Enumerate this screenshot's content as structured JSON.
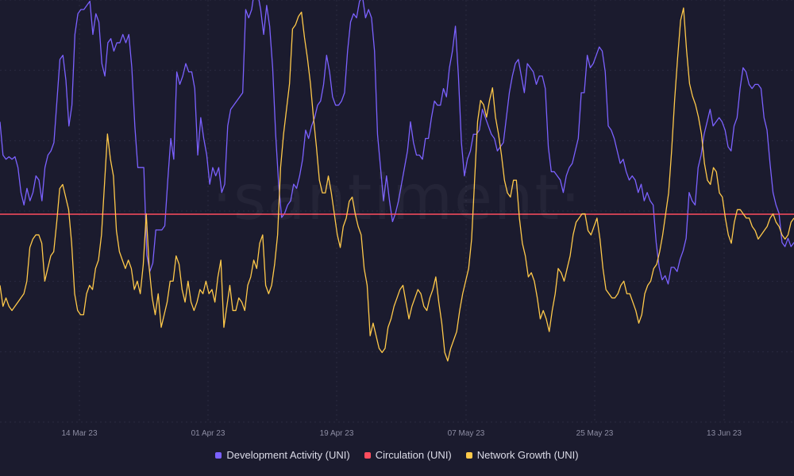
{
  "watermark": "·santiment·",
  "chart_data": {
    "type": "line",
    "x_ticks": [
      "14 Mar 23",
      "01 Apr 23",
      "19 Apr 23",
      "07 May 23",
      "25 May 23",
      "13 Jun 23"
    ],
    "grid": {
      "vertical": true,
      "horizontal": true
    },
    "legend_position": "bottom",
    "colors": {
      "background": "#1b1b2e",
      "grid": "#2b2b40",
      "development_activity": "#7b61ff",
      "circulation": "#ff4d5e",
      "network_growth": "#ffc94a"
    },
    "series": [
      {
        "name": "Development Activity (UNI)",
        "key": "development_activity",
        "values": [
          195,
          155,
          150,
          153,
          150,
          153,
          140,
          110,
          95,
          115,
          100,
          110,
          130,
          125,
          100,
          140,
          155,
          160,
          170,
          220,
          270,
          275,
          245,
          190,
          215,
          300,
          325,
          330,
          330,
          335,
          340,
          300,
          325,
          315,
          265,
          250,
          290,
          295,
          280,
          290,
          290,
          300,
          290,
          300,
          260,
          190,
          140,
          140,
          140,
          35,
          15,
          25,
          65,
          65,
          65,
          70,
          125,
          175,
          150,
          255,
          240,
          250,
          265,
          255,
          255,
          235,
          155,
          200,
          175,
          155,
          120,
          140,
          130,
          140,
          110,
          120,
          190,
          210,
          215,
          220,
          225,
          230,
          330,
          320,
          330,
          355,
          350,
          330,
          300,
          335,
          310,
          260,
          180,
          120,
          80,
          85,
          95,
          100,
          120,
          115,
          130,
          150,
          185,
          175,
          190,
          200,
          215,
          220,
          240,
          275,
          255,
          225,
          215,
          215,
          220,
          230,
          280,
          315,
          325,
          320,
          340,
          345,
          320,
          330,
          320,
          280,
          180,
          140,
          100,
          130,
          100,
          75,
          85,
          100,
          120,
          140,
          160,
          195,
          170,
          155,
          155,
          150,
          175,
          175,
          200,
          220,
          215,
          215,
          235,
          225,
          260,
          280,
          310,
          250,
          170,
          130,
          150,
          160,
          180,
          180,
          185,
          210,
          200,
          190,
          180,
          175,
          160,
          165,
          170,
          200,
          230,
          250,
          265,
          270,
          250,
          230,
          265,
          260,
          255,
          240,
          250,
          250,
          235,
          165,
          135,
          135,
          130,
          125,
          110,
          130,
          140,
          145,
          160,
          175,
          230,
          230,
          275,
          260,
          265,
          275,
          285,
          280,
          255,
          190,
          185,
          175,
          160,
          145,
          150,
          135,
          125,
          130,
          125,
          110,
          120,
          100,
          110,
          100,
          95,
          50,
          20,
          5,
          10,
          0,
          20,
          20,
          15,
          30,
          40,
          55,
          110,
          100,
          95,
          140,
          155,
          180,
          195,
          210,
          190,
          195,
          200,
          195,
          185,
          165,
          160,
          190,
          200,
          235,
          260,
          255,
          240,
          235,
          240,
          240,
          235,
          200,
          185,
          145,
          110,
          95,
          85,
          50,
          45,
          55,
          45,
          50
        ]
      },
      {
        "name": "Circulation (UNI)",
        "key": "circulation",
        "values": [
          200,
          200
        ]
      },
      {
        "name": "Network Growth (UNI)",
        "key": "network_growth",
        "values": [
          90,
          65,
          75,
          65,
          60,
          65,
          70,
          75,
          80,
          95,
          135,
          145,
          150,
          150,
          140,
          95,
          110,
          125,
          130,
          165,
          205,
          210,
          195,
          180,
          140,
          80,
          60,
          55,
          55,
          80,
          90,
          85,
          110,
          120,
          150,
          210,
          270,
          240,
          220,
          155,
          130,
          120,
          110,
          120,
          110,
          85,
          95,
          80,
          115,
          175,
          110,
          75,
          55,
          80,
          40,
          55,
          70,
          95,
          95,
          125,
          115,
          85,
          70,
          95,
          70,
          60,
          70,
          85,
          80,
          95,
          80,
          85,
          70,
          100,
          120,
          40,
          65,
          90,
          60,
          60,
          75,
          70,
          60,
          90,
          100,
          120,
          110,
          140,
          150,
          90,
          80,
          90,
          115,
          150,
          230,
          270,
          300,
          330,
          395,
          400,
          410,
          415,
          385,
          360,
          330,
          290,
          255,
          215,
          200,
          200,
          220,
          200,
          175,
          150,
          135,
          160,
          170,
          190,
          195,
          175,
          160,
          150,
          110,
          90,
          30,
          45,
          30,
          15,
          10,
          15,
          40,
          50,
          65,
          75,
          85,
          90,
          70,
          50,
          65,
          75,
          85,
          80,
          65,
          60,
          75,
          85,
          100,
          70,
          45,
          10,
          0,
          15,
          25,
          35,
          60,
          80,
          95,
          110,
          145,
          215,
          285,
          310,
          305,
          290,
          310,
          325,
          290,
          270,
          245,
          215,
          200,
          195,
          215,
          215,
          170,
          140,
          125,
          100,
          105,
          95,
          75,
          50,
          60,
          50,
          35,
          60,
          80,
          110,
          105,
          95,
          110,
          125,
          150,
          165,
          170,
          175,
          175,
          155,
          150,
          160,
          170,
          145,
          110,
          85,
          80,
          75,
          75,
          80,
          90,
          95,
          80,
          80,
          70,
          60,
          45,
          55,
          80,
          90,
          95,
          110,
          115,
          130,
          150,
          175,
          200,
          250,
          310,
          360,
          405,
          420,
          370,
          330,
          315,
          305,
          290,
          270,
          235,
          215,
          210,
          230,
          225,
          200,
          195,
          170,
          150,
          140,
          165,
          180,
          180,
          175,
          170,
          170,
          160,
          155,
          145,
          150,
          155,
          160,
          170,
          175,
          165,
          160,
          150,
          145,
          150,
          165,
          170
        ]
      }
    ]
  }
}
